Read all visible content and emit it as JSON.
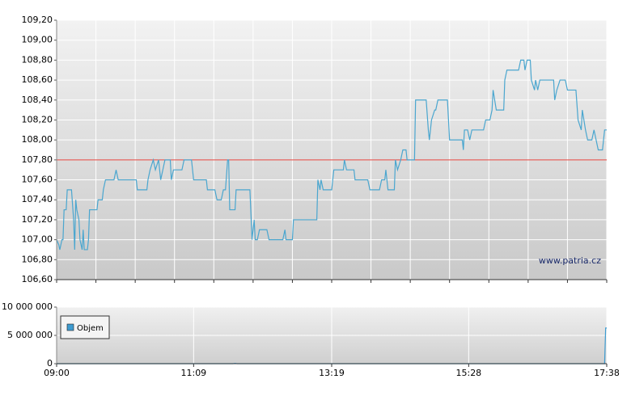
{
  "chart_data": [
    {
      "type": "line",
      "watermark": "www.patria.cz",
      "color": "#4aa6cf",
      "reference_line": {
        "value": 107.8,
        "color": "#e2403a"
      },
      "xlim": [
        "09:00",
        "17:38"
      ],
      "ylim": [
        106.6,
        109.2
      ],
      "yticks": [
        {
          "value": 106.6,
          "label": "106,60"
        },
        {
          "value": 106.8,
          "label": "106,80"
        },
        {
          "value": 107.0,
          "label": "107,00"
        },
        {
          "value": 107.2,
          "label": "107,20"
        },
        {
          "value": 107.4,
          "label": "107,40"
        },
        {
          "value": 107.6,
          "label": "107,60"
        },
        {
          "value": 107.8,
          "label": "107,80"
        },
        {
          "value": 108.0,
          "label": "108,00"
        },
        {
          "value": 108.2,
          "label": "108,20"
        },
        {
          "value": 108.4,
          "label": "108,40"
        },
        {
          "value": 108.6,
          "label": "108,60"
        },
        {
          "value": 108.8,
          "label": "108,80"
        },
        {
          "value": 109.0,
          "label": "109,00"
        },
        {
          "value": 109.2,
          "label": "109,20"
        }
      ],
      "grid": true,
      "x": [
        "09:00",
        "09:02",
        "09:03",
        "09:05",
        "09:06",
        "09:07",
        "09:09",
        "09:10",
        "09:14",
        "09:16",
        "09:17",
        "09:18",
        "09:19",
        "09:21",
        "09:22",
        "09:24",
        "09:25",
        "09:26",
        "09:29",
        "09:30",
        "09:31",
        "09:38",
        "09:39",
        "09:43",
        "09:44",
        "09:46",
        "09:54",
        "09:56",
        "09:58",
        "10:15",
        "10:16",
        "10:25",
        "10:26",
        "10:28",
        "10:31",
        "10:33",
        "10:36",
        "10:38",
        "10:40",
        "10:42",
        "10:47",
        "10:48",
        "10:50",
        "10:58",
        "11:00",
        "11:07",
        "11:09",
        "11:21",
        "11:22",
        "11:29",
        "11:31",
        "11:35",
        "11:37",
        "11:39",
        "11:41",
        "11:42",
        "11:43",
        "11:48",
        "11:49",
        "12:02",
        "12:04",
        "12:06",
        "12:07",
        "12:09",
        "12:11",
        "12:18",
        "12:20",
        "12:33",
        "12:35",
        "12:36",
        "12:42",
        "12:43",
        "13:05",
        "13:06",
        "13:08",
        "13:09",
        "13:11",
        "13:19",
        "13:21",
        "13:30",
        "13:31",
        "13:33",
        "13:40",
        "13:41",
        "13:53",
        "13:55",
        "14:04",
        "14:06",
        "14:09",
        "14:10",
        "14:12",
        "14:18",
        "14:19",
        "14:21",
        "14:24",
        "14:26",
        "14:29",
        "14:30",
        "14:37",
        "14:38",
        "14:48",
        "14:50",
        "14:51",
        "14:53",
        "14:56",
        "14:57",
        "14:59",
        "15:08",
        "15:10",
        "15:22",
        "15:23",
        "15:24",
        "15:27",
        "15:29",
        "15:31",
        "15:42",
        "15:44",
        "15:48",
        "15:50",
        "15:51",
        "15:54",
        "16:01",
        "16:02",
        "16:04",
        "16:15",
        "16:17",
        "16:20",
        "16:21",
        "16:23",
        "16:26",
        "16:27",
        "16:30",
        "16:31",
        "16:33",
        "16:35",
        "16:48",
        "16:49",
        "16:51",
        "16:54",
        "16:59",
        "17:01",
        "17:09",
        "17:11",
        "17:14",
        "17:15",
        "17:18",
        "17:20",
        "17:24",
        "17:26",
        "17:28",
        "17:30",
        "17:34",
        "17:36",
        "17:38"
      ],
      "values": [
        107.0,
        106.95,
        106.9,
        107.0,
        107.0,
        107.3,
        107.3,
        107.5,
        107.5,
        107.2,
        106.9,
        107.4,
        107.3,
        107.2,
        107.0,
        106.9,
        107.1,
        106.9,
        106.9,
        107.0,
        107.3,
        107.3,
        107.4,
        107.4,
        107.5,
        107.6,
        107.6,
        107.7,
        107.6,
        107.6,
        107.5,
        107.5,
        107.6,
        107.7,
        107.8,
        107.7,
        107.8,
        107.6,
        107.7,
        107.8,
        107.8,
        107.6,
        107.7,
        107.7,
        107.8,
        107.8,
        107.6,
        107.6,
        107.5,
        107.5,
        107.4,
        107.4,
        107.5,
        107.5,
        107.8,
        107.8,
        107.3,
        107.3,
        107.5,
        107.5,
        107.0,
        107.2,
        107.0,
        107.0,
        107.1,
        107.1,
        107.0,
        107.0,
        107.1,
        107.0,
        107.0,
        107.2,
        107.2,
        107.6,
        107.5,
        107.6,
        107.5,
        107.5,
        107.7,
        107.7,
        107.8,
        107.7,
        107.7,
        107.6,
        107.6,
        107.5,
        107.5,
        107.6,
        107.6,
        107.7,
        107.5,
        107.5,
        107.8,
        107.7,
        107.8,
        107.9,
        107.9,
        107.8,
        107.8,
        108.4,
        108.4,
        108.1,
        108.0,
        108.2,
        108.3,
        108.3,
        108.4,
        108.4,
        108.0,
        108.0,
        107.9,
        108.1,
        108.1,
        108.0,
        108.1,
        108.1,
        108.2,
        108.2,
        108.3,
        108.5,
        108.3,
        108.3,
        108.6,
        108.7,
        108.7,
        108.8,
        108.8,
        108.7,
        108.8,
        108.8,
        108.6,
        108.5,
        108.6,
        108.5,
        108.6,
        108.6,
        108.4,
        108.5,
        108.6,
        108.6,
        108.5,
        108.5,
        108.2,
        108.1,
        108.3,
        108.1,
        108.0,
        108.0,
        108.1,
        108.0,
        107.9,
        107.9,
        108.1,
        108.1
      ]
    },
    {
      "type": "line",
      "xlim": [
        "09:00",
        "17:38"
      ],
      "xticks": [
        "09:00",
        "11:09",
        "13:19",
        "15:28",
        "17:38"
      ],
      "ylim": [
        0,
        10000000
      ],
      "yticks": [
        0,
        {
          "value": 5000000,
          "label": "5 000 000"
        },
        {
          "value": 10000000,
          "label": "10 000 000"
        }
      ],
      "grid": true,
      "legend": "lower left",
      "x": [
        "09:00",
        "11:46",
        "11:48",
        "11:50",
        "17:36",
        "17:37",
        "17:38"
      ],
      "series": [
        {
          "name": "Objem",
          "color": "#3d9bd0",
          "values": [
            0,
            0,
            60000,
            0,
            0,
            6300000,
            6300000
          ]
        }
      ]
    }
  ]
}
